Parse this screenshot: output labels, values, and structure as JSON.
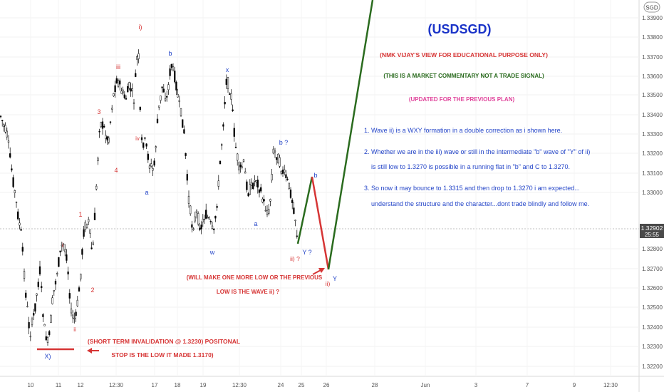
{
  "chart_data": {
    "type": "candlestick",
    "title": "(USDSGD)",
    "currency_badge": "SGD",
    "ylim": [
      1.3215,
      1.34
    ],
    "y_ticks": [
      "1.33900",
      "1.33800",
      "1.33700",
      "1.33600",
      "1.33500",
      "1.33400",
      "1.33300",
      "1.33200",
      "1.33100",
      "1.33000",
      "1.32800",
      "1.32700",
      "1.32600",
      "1.32500",
      "1.32400",
      "1.32300",
      "1.32200"
    ],
    "x_ticks": [
      "10",
      "11",
      "12",
      "12:30",
      "17",
      "18",
      "19",
      "12:30",
      "24",
      "25",
      "26",
      "28",
      "Jun",
      "3",
      "7",
      "9",
      "12:30"
    ],
    "last_price": {
      "value": "1.32902",
      "countdown": "25:55"
    },
    "header_notes": [
      "(NMK VIJAY'S VIEW FOR EDUCATIONAL PURPOSE ONLY)",
      "(THIS IS A MARKET COMMENTARY NOT A TRADE SIGNAL)",
      "(UPDATED FOR THE PREVIOUS PLAN)"
    ],
    "commentary": [
      "1. Wave ii) is a WXY formation in a double correction as i shown here.",
      "2. Whether we are in the iii) wave or still in the intermediate \"b\" wave of \"Y\" of ii)",
      "is still low to 1.3270 is possible in a running flat in \"b\" and C to 1.3270.",
      "3. So now it may bounce to 1.3315 and then drop to 1.3270 i am expected...",
      "understand the structure and the character...dont trade blindly and follow me."
    ],
    "notes": {
      "low_note_1": "(WILL MAKE ONE MORE LOW OR THE PREVIOUS",
      "low_note_2": "LOW IS THE WAVE ii) ?",
      "invalidation_1": "(SHORT TERM INVALIDATION @ 1.3230) POSITONAL",
      "invalidation_2": "STOP IS THE LOW IT MADE 1.3170)"
    },
    "wave_labels": {
      "x_low": "X)",
      "i_small": "i",
      "ii_small": "ii",
      "one": "1",
      "two": "2",
      "three": "3",
      "four": "4",
      "iii": "iii",
      "i_top": "i)",
      "iv": "iv",
      "a1": "a",
      "b1": "b",
      "w": "w",
      "x": "x",
      "a2": "a",
      "b2": "b ?",
      "ii_q": "ii) ?",
      "y_q": "Y ?",
      "b_proj": "b",
      "ii_proj": "ii)",
      "y_proj": "Y"
    },
    "projection": [
      {
        "x": "25",
        "y": 1.3283
      },
      {
        "x": "26",
        "y": 1.3315
      },
      {
        "x": "26",
        "y": 1.327
      },
      {
        "x": "28",
        "y": 1.34
      }
    ],
    "colors": {
      "title": "#1a33c8",
      "red": "#d63535",
      "green": "#2a6b1e",
      "pink": "#e0449b",
      "blue": "#2445c8",
      "bull": "#ffffff",
      "bear": "#000000"
    }
  }
}
